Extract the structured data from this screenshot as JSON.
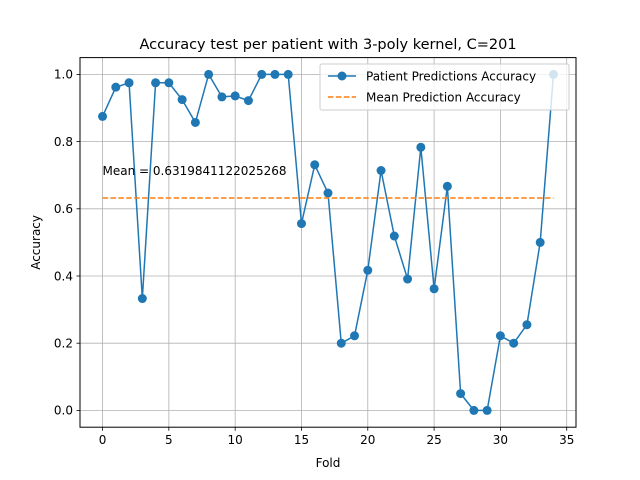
{
  "chart_data": {
    "type": "line",
    "title": "Accuracy test per patient with 3-poly kernel, C=201",
    "xlabel": "Fold",
    "ylabel": "Accuracy",
    "xlim": [
      -1.7,
      35.7
    ],
    "ylim": [
      -0.05,
      1.05
    ],
    "xticks": [
      0,
      5,
      10,
      15,
      20,
      25,
      30,
      35
    ],
    "yticks": [
      0.0,
      0.2,
      0.4,
      0.6,
      0.8,
      1.0
    ],
    "xtick_labels": [
      "0",
      "5",
      "10",
      "15",
      "20",
      "25",
      "30",
      "35"
    ],
    "ytick_labels": [
      "0.0",
      "0.2",
      "0.4",
      "0.6",
      "0.8",
      "1.0"
    ],
    "grid": true,
    "legend_position": "top-right",
    "annotation": "Mean = 0.6319841122025268",
    "annotation_at": {
      "x": 0,
      "y": 0.7
    },
    "series": [
      {
        "name": "Patient Predictions Accuracy",
        "style": "line-marker",
        "color": "#1f77b4",
        "x": [
          0,
          1,
          2,
          3,
          4,
          5,
          6,
          7,
          8,
          9,
          10,
          11,
          12,
          13,
          14,
          15,
          16,
          17,
          18,
          19,
          20,
          21,
          22,
          23,
          24,
          25,
          26,
          27,
          28,
          29,
          30,
          31,
          32,
          33,
          34
        ],
        "values": [
          0.875,
          0.962,
          0.975,
          0.333,
          0.975,
          0.975,
          0.925,
          0.857,
          1.0,
          0.933,
          0.936,
          0.922,
          1.0,
          1.0,
          1.0,
          0.556,
          0.731,
          0.647,
          0.2,
          0.222,
          0.417,
          0.714,
          0.519,
          0.391,
          0.783,
          0.362,
          0.667,
          0.05,
          0.0,
          0.0,
          0.222,
          0.2,
          0.255,
          0.5,
          1.0
        ]
      },
      {
        "name": "Mean Prediction Accuracy",
        "style": "dashed",
        "color": "#ff7f0e",
        "x": [
          0,
          34
        ],
        "values": [
          0.632,
          0.632
        ]
      }
    ]
  }
}
